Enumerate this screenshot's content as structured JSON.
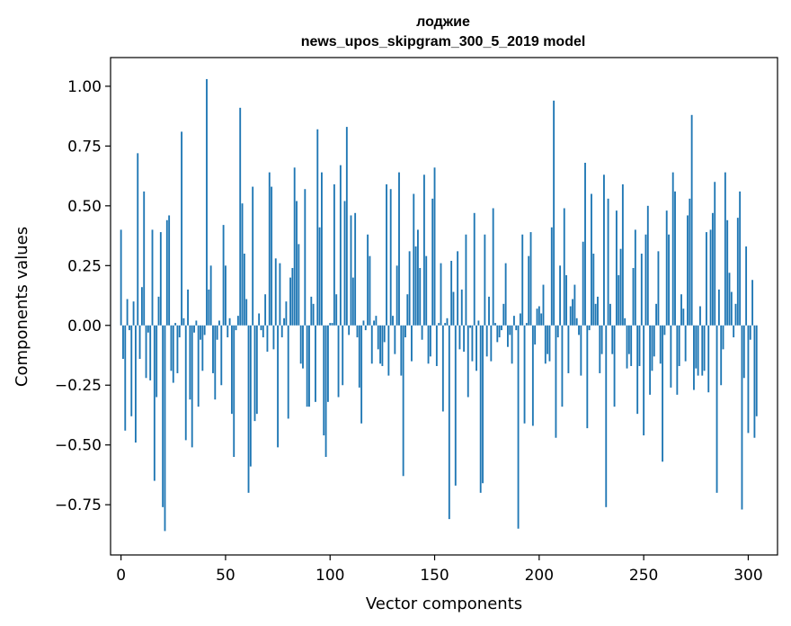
{
  "chart_data": {
    "type": "bar",
    "title": "лоджие",
    "subtitle": "news_upos_skipgram_300_5_2019 model",
    "xlabel": "Vector components",
    "ylabel": "Components values",
    "xlim": [
      -5,
      314
    ],
    "ylim": [
      -0.96,
      1.12
    ],
    "xticks": [
      0,
      50,
      100,
      150,
      200,
      250,
      300
    ],
    "xtick_labels": [
      "0",
      "50",
      "100",
      "150",
      "200",
      "250",
      "300"
    ],
    "yticks": [
      -0.75,
      -0.5,
      -0.25,
      0.0,
      0.25,
      0.5,
      0.75,
      1.0
    ],
    "ytick_labels": [
      "−0.75",
      "−0.50",
      "−0.25",
      "0.00",
      "0.25",
      "0.50",
      "0.75",
      "1.00"
    ],
    "bar_color": "#1f77b4",
    "values": [
      0.4,
      -0.14,
      -0.44,
      0.11,
      -0.02,
      -0.38,
      0.1,
      -0.49,
      0.72,
      -0.14,
      0.16,
      0.56,
      -0.22,
      -0.03,
      -0.23,
      0.4,
      -0.65,
      -0.3,
      0.12,
      0.39,
      -0.76,
      -0.86,
      0.44,
      0.46,
      -0.19,
      -0.24,
      0.01,
      -0.2,
      -0.05,
      0.81,
      0.03,
      -0.48,
      0.15,
      -0.31,
      -0.51,
      -0.03,
      0.02,
      -0.34,
      -0.06,
      -0.19,
      -0.04,
      1.03,
      0.15,
      0.25,
      -0.2,
      -0.31,
      -0.06,
      0.02,
      -0.25,
      0.42,
      0.25,
      -0.05,
      0.03,
      -0.37,
      -0.55,
      -0.02,
      0.04,
      0.91,
      0.51,
      0.3,
      0.11,
      -0.7,
      -0.59,
      0.58,
      -0.4,
      -0.37,
      0.05,
      -0.02,
      -0.05,
      0.13,
      -0.11,
      0.64,
      0.58,
      -0.1,
      0.28,
      -0.51,
      0.26,
      -0.05,
      0.03,
      0.1,
      -0.39,
      0.2,
      0.24,
      0.66,
      0.52,
      0.34,
      -0.16,
      -0.18,
      0.57,
      -0.34,
      -0.34,
      0.12,
      0.09,
      -0.32,
      0.82,
      0.41,
      0.64,
      -0.46,
      -0.55,
      -0.32,
      0.01,
      0.01,
      0.59,
      0.13,
      -0.3,
      0.67,
      -0.25,
      0.52,
      0.83,
      -0.04,
      0.46,
      0.2,
      0.47,
      -0.05,
      -0.26,
      -0.41,
      0.02,
      -0.02,
      0.38,
      0.29,
      -0.16,
      0.02,
      0.04,
      -0.1,
      -0.16,
      -0.17,
      -0.07,
      0.59,
      -0.21,
      0.57,
      0.04,
      -0.12,
      0.25,
      0.64,
      -0.21,
      -0.63,
      -0.05,
      0.13,
      0.31,
      -0.15,
      0.55,
      0.33,
      0.4,
      0.24,
      -0.06,
      0.63,
      0.29,
      -0.16,
      -0.13,
      0.53,
      0.66,
      -0.17,
      0.01,
      0.26,
      -0.36,
      0.01,
      0.03,
      -0.81,
      0.27,
      0.14,
      -0.67,
      0.31,
      -0.1,
      0.15,
      -0.11,
      0.38,
      -0.3,
      -0.01,
      -0.15,
      0.47,
      -0.19,
      0.02,
      -0.7,
      -0.66,
      0.38,
      -0.13,
      0.12,
      -0.15,
      0.49,
      0.01,
      -0.07,
      -0.05,
      -0.02,
      0.09,
      0.26,
      -0.09,
      -0.04,
      -0.16,
      0.04,
      -0.02,
      -0.85,
      0.05,
      0.38,
      -0.41,
      0.01,
      0.29,
      0.39,
      -0.42,
      -0.08,
      0.07,
      0.08,
      0.05,
      0.17,
      -0.16,
      -0.12,
      -0.15,
      0.41,
      0.94,
      -0.47,
      -0.05,
      0.25,
      -0.34,
      0.49,
      0.21,
      -0.2,
      0.08,
      0.11,
      0.17,
      0.03,
      -0.04,
      -0.21,
      0.35,
      0.68,
      -0.43,
      -0.02,
      0.55,
      0.3,
      0.09,
      0.12,
      -0.2,
      -0.12,
      0.63,
      -0.76,
      0.53,
      0.09,
      -0.12,
      -0.34,
      0.48,
      0.21,
      0.32,
      0.59,
      0.03,
      -0.18,
      -0.12,
      -0.17,
      0.24,
      0.4,
      -0.37,
      -0.17,
      0.3,
      -0.46,
      0.38,
      0.5,
      -0.29,
      -0.19,
      -0.13,
      0.09,
      0.31,
      -0.16,
      -0.57,
      -0.04,
      0.48,
      0.38,
      -0.26,
      0.64,
      0.56,
      -0.29,
      -0.17,
      0.13,
      0.07,
      -0.15,
      0.46,
      0.53,
      0.88,
      -0.27,
      -0.18,
      -0.21,
      0.08,
      -0.21,
      -0.19,
      0.39,
      -0.28,
      0.4,
      0.47,
      0.6,
      -0.7,
      0.15,
      -0.25,
      -0.1,
      0.64,
      0.44,
      0.22,
      0.14,
      -0.05,
      0.09,
      0.45,
      0.56,
      -0.77,
      -0.22,
      0.33,
      -0.45,
      -0.06,
      0.19,
      -0.47,
      -0.38
    ]
  }
}
